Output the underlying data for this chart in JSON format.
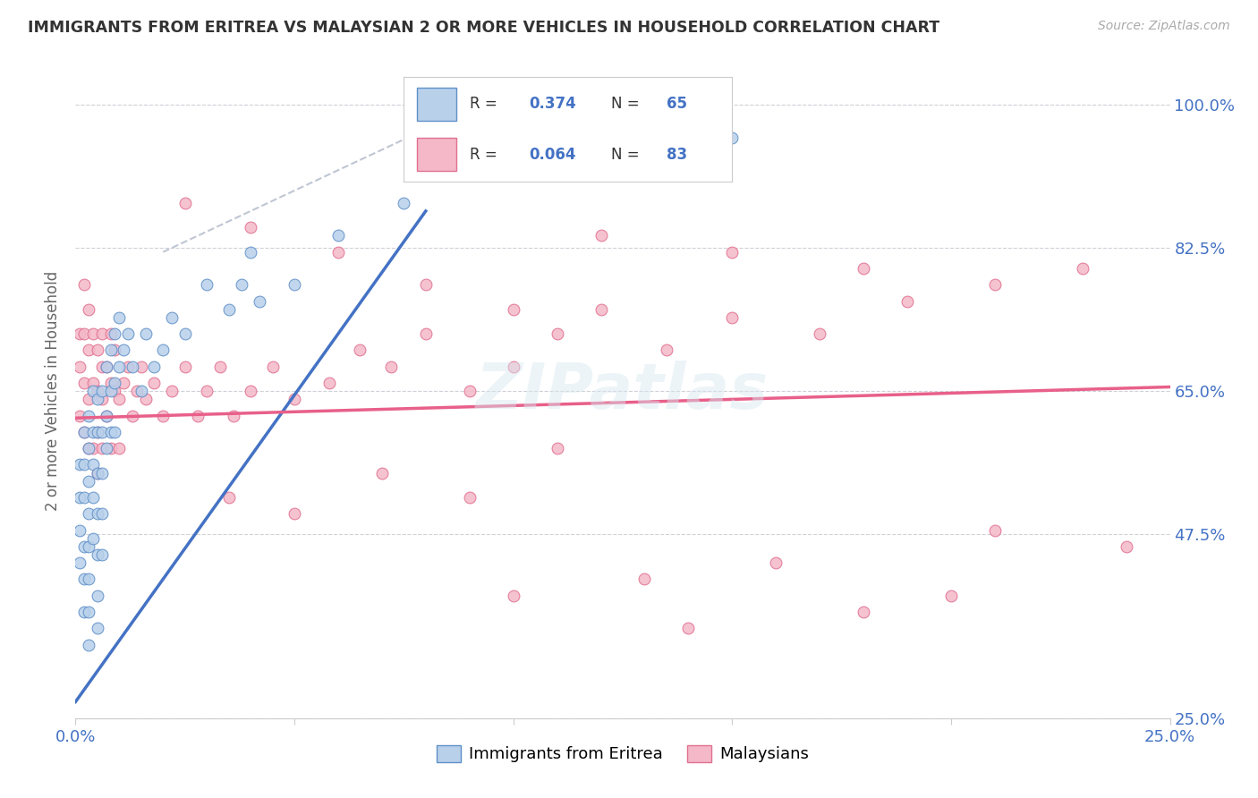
{
  "title": "IMMIGRANTS FROM ERITREA VS MALAYSIAN 2 OR MORE VEHICLES IN HOUSEHOLD CORRELATION CHART",
  "source": "Source: ZipAtlas.com",
  "legend_label_1": "Immigrants from Eritrea",
  "legend_label_2": "Malaysians",
  "color_eritrea_fill": "#b8d0ea",
  "color_eritrea_edge": "#6090c8",
  "color_malaysia_fill": "#f4b8c8",
  "color_malaysia_edge": "#e07090",
  "color_eritrea_line": "#4472c4",
  "color_malaysia_line": "#e8608a",
  "color_diagonal": "#b0b8c8",
  "xmin": 0.0,
  "xmax": 0.25,
  "ymin": 0.25,
  "ymax": 1.05,
  "y_ticks": [
    0.25,
    0.475,
    0.65,
    0.825,
    1.0
  ],
  "y_labels": [
    "25.0%",
    "47.5%",
    "65.0%",
    "82.5%",
    "100.0%"
  ],
  "eritrea_line_x0": 0.0,
  "eritrea_line_y0": 0.27,
  "eritrea_line_x1": 0.08,
  "eritrea_line_y1": 0.87,
  "malaysia_line_x0": 0.0,
  "malaysia_line_y0": 0.617,
  "malaysia_line_x1": 0.25,
  "malaysia_line_y1": 0.655,
  "eritrea_x": [
    0.001,
    0.001,
    0.001,
    0.001,
    0.002,
    0.002,
    0.002,
    0.002,
    0.002,
    0.002,
    0.003,
    0.003,
    0.003,
    0.003,
    0.003,
    0.003,
    0.003,
    0.003,
    0.004,
    0.004,
    0.004,
    0.004,
    0.004,
    0.005,
    0.005,
    0.005,
    0.005,
    0.005,
    0.005,
    0.005,
    0.006,
    0.006,
    0.006,
    0.006,
    0.006,
    0.007,
    0.007,
    0.007,
    0.008,
    0.008,
    0.008,
    0.009,
    0.009,
    0.009,
    0.01,
    0.01,
    0.011,
    0.012,
    0.013,
    0.015,
    0.016,
    0.018,
    0.02,
    0.022,
    0.025,
    0.03,
    0.035,
    0.038,
    0.04,
    0.042,
    0.05,
    0.06,
    0.075,
    0.12,
    0.15
  ],
  "eritrea_y": [
    0.56,
    0.52,
    0.48,
    0.44,
    0.6,
    0.56,
    0.52,
    0.46,
    0.42,
    0.38,
    0.62,
    0.58,
    0.54,
    0.5,
    0.46,
    0.42,
    0.38,
    0.34,
    0.65,
    0.6,
    0.56,
    0.52,
    0.47,
    0.64,
    0.6,
    0.55,
    0.5,
    0.45,
    0.4,
    0.36,
    0.65,
    0.6,
    0.55,
    0.5,
    0.45,
    0.68,
    0.62,
    0.58,
    0.7,
    0.65,
    0.6,
    0.72,
    0.66,
    0.6,
    0.74,
    0.68,
    0.7,
    0.72,
    0.68,
    0.65,
    0.72,
    0.68,
    0.7,
    0.74,
    0.72,
    0.78,
    0.75,
    0.78,
    0.82,
    0.76,
    0.78,
    0.84,
    0.88,
    0.92,
    0.96
  ],
  "malaysia_x": [
    0.001,
    0.001,
    0.001,
    0.002,
    0.002,
    0.002,
    0.002,
    0.003,
    0.003,
    0.003,
    0.003,
    0.004,
    0.004,
    0.004,
    0.005,
    0.005,
    0.005,
    0.005,
    0.006,
    0.006,
    0.006,
    0.006,
    0.007,
    0.007,
    0.008,
    0.008,
    0.008,
    0.009,
    0.009,
    0.01,
    0.01,
    0.011,
    0.012,
    0.013,
    0.014,
    0.015,
    0.016,
    0.018,
    0.02,
    0.022,
    0.025,
    0.028,
    0.03,
    0.033,
    0.036,
    0.04,
    0.045,
    0.05,
    0.058,
    0.065,
    0.072,
    0.08,
    0.09,
    0.1,
    0.11,
    0.12,
    0.135,
    0.15,
    0.17,
    0.19,
    0.21,
    0.23,
    0.12,
    0.15,
    0.18,
    0.035,
    0.05,
    0.07,
    0.09,
    0.11,
    0.025,
    0.04,
    0.06,
    0.08,
    0.1,
    0.13,
    0.16,
    0.2,
    0.24,
    0.21,
    0.18,
    0.14,
    0.1
  ],
  "malaysia_y": [
    0.68,
    0.62,
    0.72,
    0.66,
    0.6,
    0.72,
    0.78,
    0.64,
    0.7,
    0.75,
    0.58,
    0.66,
    0.72,
    0.58,
    0.65,
    0.7,
    0.6,
    0.55,
    0.68,
    0.64,
    0.72,
    0.58,
    0.68,
    0.62,
    0.66,
    0.72,
    0.58,
    0.65,
    0.7,
    0.64,
    0.58,
    0.66,
    0.68,
    0.62,
    0.65,
    0.68,
    0.64,
    0.66,
    0.62,
    0.65,
    0.68,
    0.62,
    0.65,
    0.68,
    0.62,
    0.65,
    0.68,
    0.64,
    0.66,
    0.7,
    0.68,
    0.72,
    0.65,
    0.68,
    0.72,
    0.75,
    0.7,
    0.74,
    0.72,
    0.76,
    0.78,
    0.8,
    0.84,
    0.82,
    0.8,
    0.52,
    0.5,
    0.55,
    0.52,
    0.58,
    0.88,
    0.85,
    0.82,
    0.78,
    0.75,
    0.42,
    0.44,
    0.4,
    0.46,
    0.48,
    0.38,
    0.36,
    0.4
  ]
}
